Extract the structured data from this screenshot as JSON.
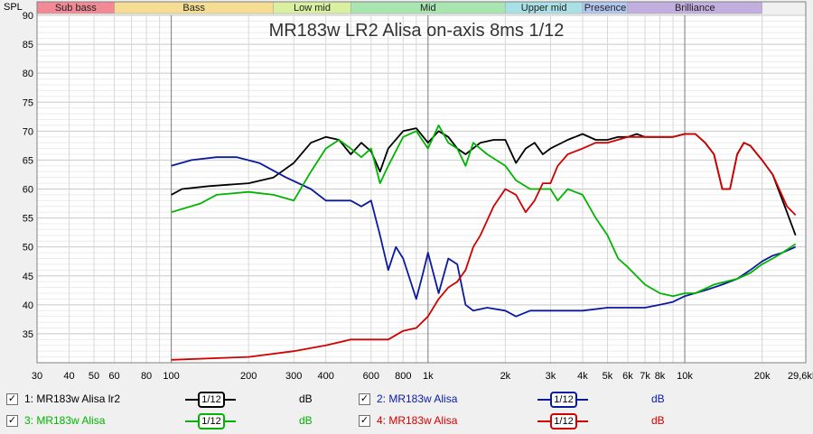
{
  "chart_data": {
    "type": "line",
    "title": "MR183w LR2 Alisa on-axis 8ms 1/12",
    "ylabel": "SPL",
    "xlabel": "",
    "x_scale": "log",
    "xlim": [
      30,
      29600
    ],
    "ylim": [
      30,
      90
    ],
    "grid": true,
    "x_ticks": [
      {
        "v": 30,
        "label": "30"
      },
      {
        "v": 40,
        "label": "40"
      },
      {
        "v": 50,
        "label": "50"
      },
      {
        "v": 60,
        "label": "60"
      },
      {
        "v": 80,
        "label": "80"
      },
      {
        "v": 100,
        "label": "100"
      },
      {
        "v": 200,
        "label": "200"
      },
      {
        "v": 300,
        "label": "300"
      },
      {
        "v": 400,
        "label": "400"
      },
      {
        "v": 600,
        "label": "600"
      },
      {
        "v": 800,
        "label": "800"
      },
      {
        "v": 1000,
        "label": "1k"
      },
      {
        "v": 2000,
        "label": "2k"
      },
      {
        "v": 3000,
        "label": "3k"
      },
      {
        "v": 4000,
        "label": "4k"
      },
      {
        "v": 5000,
        "label": "5k"
      },
      {
        "v": 6000,
        "label": "6k"
      },
      {
        "v": 7000,
        "label": "7k"
      },
      {
        "v": 8000,
        "label": "8k"
      },
      {
        "v": 10000,
        "label": "10k"
      },
      {
        "v": 20000,
        "label": "20k"
      },
      {
        "v": 29600,
        "label": "29,6kHz"
      }
    ],
    "y_ticks": [
      35,
      40,
      45,
      50,
      55,
      60,
      65,
      70,
      75,
      80,
      85,
      90
    ],
    "bands": [
      {
        "label": "Sub bass",
        "from": 20,
        "to": 60,
        "color": "#f28a96"
      },
      {
        "label": "Bass",
        "from": 60,
        "to": 250,
        "color": "#f5dd94"
      },
      {
        "label": "Low mid",
        "from": 250,
        "to": 500,
        "color": "#d9f0a0"
      },
      {
        "label": "Mid",
        "from": 500,
        "to": 2000,
        "color": "#a9e5b0"
      },
      {
        "label": "Upper mid",
        "from": 2000,
        "to": 4000,
        "color": "#a9e0e5"
      },
      {
        "label": "Presence",
        "from": 4000,
        "to": 6000,
        "color": "#b3c6f0"
      },
      {
        "label": "Brilliance",
        "from": 6000,
        "to": 20000,
        "color": "#c3aee0"
      }
    ],
    "series": [
      {
        "name": "1: MR183w Alisa lr2",
        "color": "#000000",
        "smoothing": "1/12",
        "unit": "dB",
        "points": [
          [
            100,
            59
          ],
          [
            110,
            60
          ],
          [
            140,
            60.5
          ],
          [
            200,
            61
          ],
          [
            250,
            62
          ],
          [
            300,
            64.5
          ],
          [
            350,
            68
          ],
          [
            400,
            69
          ],
          [
            450,
            68.5
          ],
          [
            500,
            66
          ],
          [
            550,
            68
          ],
          [
            600,
            66.5
          ],
          [
            650,
            63
          ],
          [
            700,
            67
          ],
          [
            800,
            70
          ],
          [
            900,
            70.5
          ],
          [
            1000,
            68
          ],
          [
            1100,
            70
          ],
          [
            1200,
            69
          ],
          [
            1300,
            67
          ],
          [
            1400,
            66
          ],
          [
            1600,
            68
          ],
          [
            1800,
            68.5
          ],
          [
            2000,
            68.5
          ],
          [
            2200,
            64.5
          ],
          [
            2400,
            67
          ],
          [
            2600,
            68
          ],
          [
            2800,
            66
          ],
          [
            3000,
            67
          ],
          [
            3500,
            68.5
          ],
          [
            4000,
            69.5
          ],
          [
            4500,
            68.5
          ],
          [
            5000,
            68.5
          ],
          [
            5500,
            69
          ],
          [
            6000,
            69
          ],
          [
            6500,
            69.5
          ],
          [
            7000,
            69
          ],
          [
            8000,
            69
          ],
          [
            9000,
            69
          ],
          [
            10000,
            69.5
          ],
          [
            11000,
            69.5
          ],
          [
            12000,
            68
          ],
          [
            13000,
            66
          ],
          [
            14000,
            60
          ],
          [
            15000,
            60
          ],
          [
            16000,
            66
          ],
          [
            17000,
            68
          ],
          [
            18000,
            67.5
          ],
          [
            20000,
            65
          ],
          [
            22000,
            62.5
          ],
          [
            25000,
            56
          ],
          [
            27000,
            52
          ]
        ]
      },
      {
        "name": "2: MR183w Alisa",
        "color": "#0a1aa0",
        "smoothing": "1/12",
        "unit": "dB",
        "points": [
          [
            100,
            64
          ],
          [
            120,
            65
          ],
          [
            150,
            65.5
          ],
          [
            180,
            65.5
          ],
          [
            220,
            64.5
          ],
          [
            280,
            62
          ],
          [
            350,
            60
          ],
          [
            400,
            58
          ],
          [
            450,
            58
          ],
          [
            500,
            58
          ],
          [
            550,
            57
          ],
          [
            600,
            58
          ],
          [
            650,
            52
          ],
          [
            700,
            46
          ],
          [
            750,
            50
          ],
          [
            800,
            48
          ],
          [
            900,
            41
          ],
          [
            950,
            45
          ],
          [
            1000,
            49
          ],
          [
            1100,
            42
          ],
          [
            1200,
            48
          ],
          [
            1300,
            47
          ],
          [
            1400,
            40
          ],
          [
            1500,
            39
          ],
          [
            1700,
            39.5
          ],
          [
            2000,
            39
          ],
          [
            2200,
            38
          ],
          [
            2500,
            39
          ],
          [
            3000,
            39
          ],
          [
            4000,
            39
          ],
          [
            5000,
            39.5
          ],
          [
            6000,
            39.5
          ],
          [
            7000,
            39.5
          ],
          [
            8000,
            40
          ],
          [
            9000,
            40.5
          ],
          [
            10000,
            41.5
          ],
          [
            12000,
            42.5
          ],
          [
            14000,
            43.5
          ],
          [
            16000,
            44.5
          ],
          [
            18000,
            46
          ],
          [
            20000,
            47.5
          ],
          [
            22000,
            48.5
          ],
          [
            24000,
            49
          ],
          [
            27000,
            50
          ]
        ]
      },
      {
        "name": "3: MR183w Alisa",
        "color": "#00b400",
        "smoothing": "1/12",
        "unit": "dB",
        "points": [
          [
            100,
            56
          ],
          [
            130,
            57.5
          ],
          [
            150,
            59
          ],
          [
            200,
            59.5
          ],
          [
            250,
            59
          ],
          [
            300,
            58
          ],
          [
            350,
            63
          ],
          [
            400,
            67
          ],
          [
            450,
            68.5
          ],
          [
            500,
            67
          ],
          [
            550,
            65.5
          ],
          [
            600,
            67
          ],
          [
            650,
            61
          ],
          [
            700,
            64
          ],
          [
            800,
            69
          ],
          [
            900,
            70
          ],
          [
            1000,
            67
          ],
          [
            1100,
            71
          ],
          [
            1200,
            68
          ],
          [
            1300,
            67
          ],
          [
            1400,
            64
          ],
          [
            1500,
            68
          ],
          [
            1700,
            66
          ],
          [
            2000,
            64
          ],
          [
            2200,
            61.5
          ],
          [
            2500,
            60
          ],
          [
            3000,
            60
          ],
          [
            3200,
            58
          ],
          [
            3500,
            60
          ],
          [
            4000,
            59
          ],
          [
            4500,
            55
          ],
          [
            5000,
            52
          ],
          [
            5500,
            48
          ],
          [
            6000,
            46.5
          ],
          [
            7000,
            43.5
          ],
          [
            8000,
            42
          ],
          [
            9000,
            41.5
          ],
          [
            10000,
            42
          ],
          [
            11000,
            42
          ],
          [
            13000,
            43.5
          ],
          [
            16000,
            44.5
          ],
          [
            18000,
            45.5
          ],
          [
            20000,
            47
          ],
          [
            22000,
            48
          ],
          [
            24000,
            49
          ],
          [
            27000,
            50.5
          ]
        ]
      },
      {
        "name": "4: MR183w Alisa",
        "color": "#d20000",
        "smoothing": "1/12",
        "unit": "dB",
        "points": [
          [
            100,
            30.5
          ],
          [
            200,
            31
          ],
          [
            300,
            32
          ],
          [
            400,
            33
          ],
          [
            500,
            34
          ],
          [
            600,
            34
          ],
          [
            700,
            34
          ],
          [
            800,
            35.5
          ],
          [
            900,
            36
          ],
          [
            1000,
            38
          ],
          [
            1100,
            41
          ],
          [
            1200,
            43
          ],
          [
            1300,
            44
          ],
          [
            1400,
            46
          ],
          [
            1500,
            50
          ],
          [
            1600,
            52
          ],
          [
            1800,
            57
          ],
          [
            2000,
            60
          ],
          [
            2200,
            59
          ],
          [
            2400,
            56
          ],
          [
            2600,
            58
          ],
          [
            2800,
            61
          ],
          [
            3000,
            61
          ],
          [
            3200,
            64
          ],
          [
            3500,
            66
          ],
          [
            4000,
            67
          ],
          [
            4500,
            68
          ],
          [
            5000,
            68
          ],
          [
            6000,
            69
          ],
          [
            7000,
            69
          ],
          [
            8000,
            69
          ],
          [
            9000,
            69
          ],
          [
            10000,
            69.5
          ],
          [
            11000,
            69.5
          ],
          [
            12000,
            68
          ],
          [
            13000,
            66
          ],
          [
            14000,
            60
          ],
          [
            15000,
            60
          ],
          [
            16000,
            66
          ],
          [
            17000,
            68
          ],
          [
            18000,
            67.5
          ],
          [
            20000,
            65
          ],
          [
            22000,
            62.5
          ],
          [
            25000,
            57
          ],
          [
            27000,
            55.5
          ]
        ]
      }
    ]
  }
}
